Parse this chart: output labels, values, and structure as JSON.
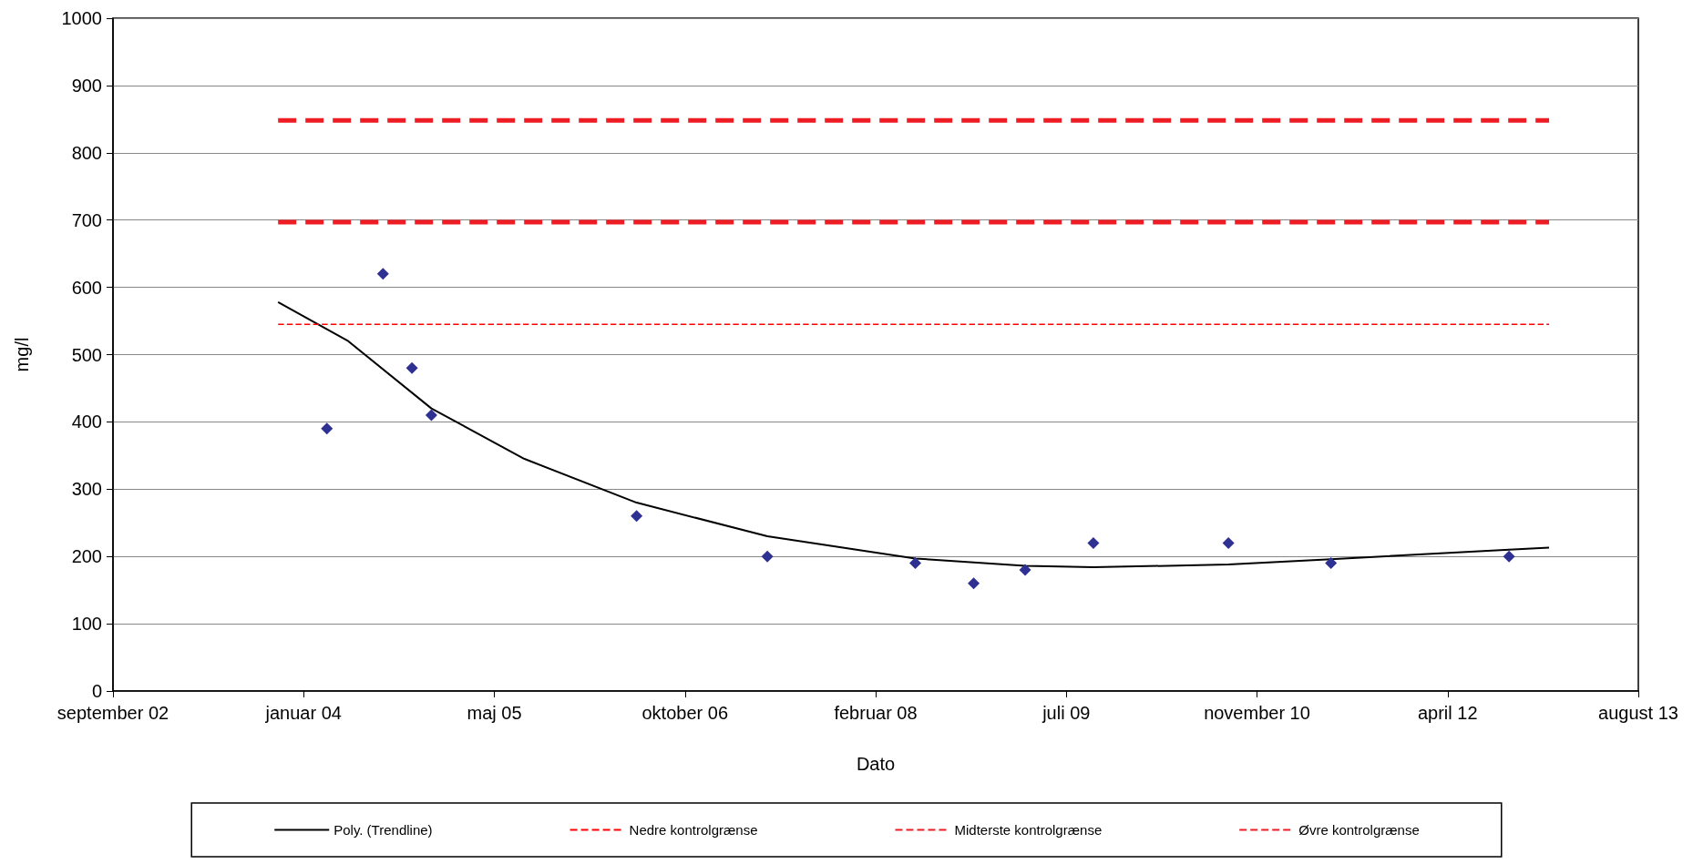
{
  "chart_data": {
    "type": "scatter",
    "xlabel": "Dato",
    "ylabel": "mg/l",
    "xlim": [
      "2002-09-01",
      "2013-08-14"
    ],
    "xticks": [
      {
        "value": "2002-09-01",
        "label": "september 02"
      },
      {
        "value": "2004-01-14",
        "label": "januar 04"
      },
      {
        "value": "2005-05-28",
        "label": "maj 05"
      },
      {
        "value": "2006-10-10",
        "label": "oktober 06"
      },
      {
        "value": "2008-02-22",
        "label": "februar 08"
      },
      {
        "value": "2009-07-06",
        "label": "juli 09"
      },
      {
        "value": "2010-11-18",
        "label": "november 10"
      },
      {
        "value": "2012-04-01",
        "label": "april 12"
      },
      {
        "value": "2013-08-14",
        "label": "august 13"
      }
    ],
    "ylim": [
      0,
      1000
    ],
    "yticks": [
      0,
      100,
      200,
      300,
      400,
      500,
      600,
      700,
      800,
      900,
      1000
    ],
    "grid": "y",
    "legend": "bottom",
    "series": [
      {
        "color": "#2e3192",
        "marker": "diamond",
        "x": [
          "2004-03-15",
          "2004-08-09",
          "2004-10-24",
          "2004-12-14",
          "2006-06-05",
          "2007-05-14",
          "2008-06-05",
          "2008-11-05",
          "2009-03-20",
          "2009-09-15",
          "2010-09-04",
          "2011-05-31",
          "2012-09-09"
        ],
        "values": [
          390,
          620,
          480,
          410,
          260,
          200,
          190,
          160,
          180,
          220,
          220,
          190,
          200
        ]
      },
      {
        "type": "line",
        "name": "Poly. (Trendline)",
        "color": "#000000",
        "line_style": "solid",
        "marker": "none",
        "x": [
          "2003-11-08",
          "2004-05-10",
          "2004-12-14",
          "2005-08-15",
          "2006-06-05",
          "2007-05-14",
          "2008-06-05",
          "2009-03-20",
          "2009-09-15",
          "2010-09-04",
          "2011-05-31",
          "2012-09-09",
          "2012-12-23"
        ],
        "values": [
          578,
          520,
          420,
          345,
          280,
          230,
          197,
          186,
          184,
          188,
          196,
          210,
          213
        ]
      },
      {
        "type": "line",
        "name": "Nedre kontrolgrænse",
        "color": "#ff0000",
        "line_style": "dashed",
        "marker": "none",
        "x": [
          "2003-11-08",
          "2012-12-23"
        ],
        "values": [
          545,
          545
        ]
      },
      {
        "type": "line",
        "name": "Midterste kontrolgrænse",
        "color": "#ee1c25",
        "line_style": "dashed",
        "marker": "none",
        "x": [
          "2003-11-08",
          "2012-12-23"
        ],
        "values": [
          697,
          697
        ]
      },
      {
        "type": "line",
        "name": "Øvre kontrolgrænse",
        "color": "#ee1c25",
        "line_style": "dashed",
        "marker": "none",
        "x": [
          "2003-11-08",
          "2012-12-23"
        ],
        "values": [
          848,
          848
        ]
      }
    ]
  }
}
